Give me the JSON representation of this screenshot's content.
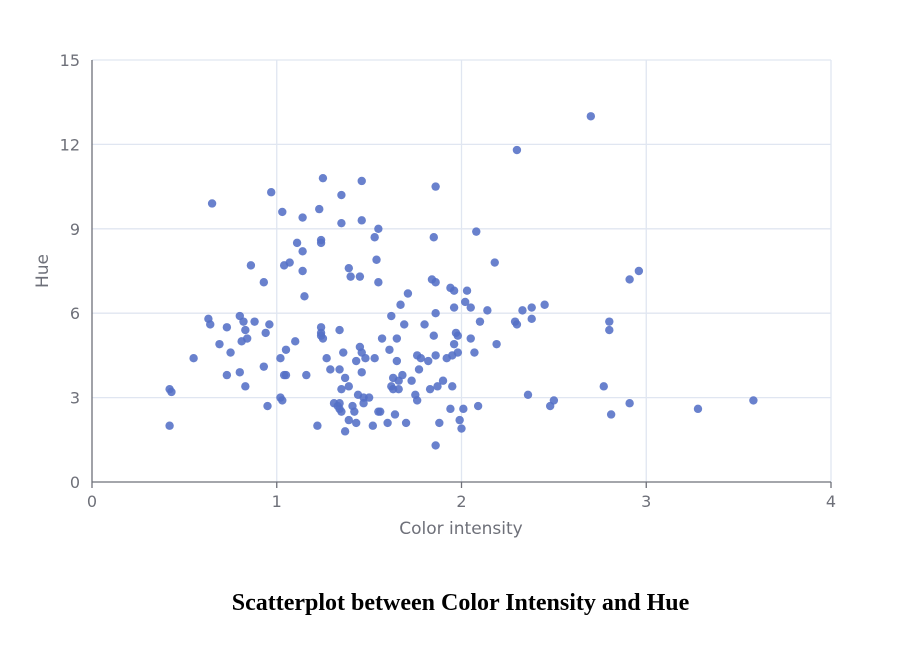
{
  "caption": "Scatterplot between Color Intensity and Hue",
  "chart_data": {
    "type": "scatter",
    "xlabel": "Color intensity",
    "ylabel": "Hue",
    "xlim": [
      0,
      4
    ],
    "ylim": [
      0,
      15
    ],
    "xticks": [
      "0",
      "1",
      "2",
      "3",
      "4"
    ],
    "yticks": [
      "0",
      "3",
      "6",
      "9",
      "12",
      "15"
    ],
    "grid": true,
    "point_color": "#5470c6",
    "points": [
      [
        0.42,
        3.3
      ],
      [
        0.43,
        3.2
      ],
      [
        0.42,
        2.0
      ],
      [
        0.55,
        4.4
      ],
      [
        0.63,
        5.8
      ],
      [
        0.64,
        5.6
      ],
      [
        0.65,
        9.9
      ],
      [
        0.69,
        4.9
      ],
      [
        0.73,
        5.5
      ],
      [
        0.73,
        3.8
      ],
      [
        0.75,
        4.6
      ],
      [
        0.8,
        3.9
      ],
      [
        0.8,
        5.9
      ],
      [
        0.81,
        5.0
      ],
      [
        0.82,
        5.7
      ],
      [
        0.83,
        5.4
      ],
      [
        0.83,
        3.4
      ],
      [
        0.84,
        5.1
      ],
      [
        0.86,
        7.7
      ],
      [
        0.88,
        5.7
      ],
      [
        0.93,
        7.1
      ],
      [
        0.93,
        4.1
      ],
      [
        0.94,
        5.3
      ],
      [
        0.95,
        2.7
      ],
      [
        0.96,
        5.6
      ],
      [
        0.97,
        10.3
      ],
      [
        1.02,
        4.4
      ],
      [
        1.02,
        3.0
      ],
      [
        1.03,
        9.6
      ],
      [
        1.03,
        2.9
      ],
      [
        1.04,
        3.8
      ],
      [
        1.04,
        7.7
      ],
      [
        1.05,
        3.8
      ],
      [
        1.05,
        4.7
      ],
      [
        1.07,
        7.8
      ],
      [
        1.1,
        5.0
      ],
      [
        1.11,
        8.5
      ],
      [
        1.14,
        9.4
      ],
      [
        1.14,
        8.2
      ],
      [
        1.14,
        7.5
      ],
      [
        1.15,
        6.6
      ],
      [
        1.16,
        3.8
      ],
      [
        1.22,
        2.0
      ],
      [
        1.23,
        9.7
      ],
      [
        1.24,
        8.6
      ],
      [
        1.24,
        8.5
      ],
      [
        1.24,
        5.5
      ],
      [
        1.24,
        5.2
      ],
      [
        1.25,
        10.8
      ],
      [
        1.25,
        5.1
      ],
      [
        1.27,
        4.4
      ],
      [
        1.29,
        4.0
      ],
      [
        1.31,
        2.8
      ],
      [
        1.33,
        2.7
      ],
      [
        1.34,
        5.4
      ],
      [
        1.34,
        4.0
      ],
      [
        1.34,
        2.8
      ],
      [
        1.34,
        2.6
      ],
      [
        1.35,
        10.2
      ],
      [
        1.35,
        9.2
      ],
      [
        1.35,
        3.3
      ],
      [
        1.35,
        2.5
      ],
      [
        1.36,
        4.6
      ],
      [
        1.37,
        3.7
      ],
      [
        1.37,
        1.8
      ],
      [
        1.39,
        7.6
      ],
      [
        1.39,
        2.2
      ],
      [
        1.39,
        3.4
      ],
      [
        1.4,
        7.3
      ],
      [
        1.41,
        2.7
      ],
      [
        1.42,
        2.5
      ],
      [
        1.43,
        2.1
      ],
      [
        1.43,
        4.3
      ],
      [
        1.44,
        3.1
      ],
      [
        1.45,
        4.8
      ],
      [
        1.45,
        7.3
      ],
      [
        1.46,
        10.7
      ],
      [
        1.46,
        9.3
      ],
      [
        1.46,
        4.6
      ],
      [
        1.46,
        3.9
      ],
      [
        1.47,
        3.0
      ],
      [
        1.47,
        2.8
      ],
      [
        1.48,
        4.4
      ],
      [
        1.5,
        3.0
      ],
      [
        1.52,
        2.0
      ],
      [
        1.53,
        4.4
      ],
      [
        1.53,
        8.7
      ],
      [
        1.54,
        7.9
      ],
      [
        1.55,
        9.0
      ],
      [
        1.55,
        7.1
      ],
      [
        1.55,
        2.5
      ],
      [
        1.56,
        2.5
      ],
      [
        1.57,
        5.1
      ],
      [
        1.6,
        2.1
      ],
      [
        1.61,
        4.7
      ],
      [
        1.62,
        5.9
      ],
      [
        1.62,
        3.4
      ],
      [
        1.63,
        3.3
      ],
      [
        1.63,
        3.7
      ],
      [
        1.64,
        2.4
      ],
      [
        1.65,
        5.1
      ],
      [
        1.65,
        4.3
      ],
      [
        1.66,
        3.3
      ],
      [
        1.66,
        3.6
      ],
      [
        1.67,
        6.3
      ],
      [
        1.68,
        3.8
      ],
      [
        1.69,
        5.6
      ],
      [
        1.7,
        2.1
      ],
      [
        1.71,
        6.7
      ],
      [
        1.73,
        3.6
      ],
      [
        1.75,
        3.1
      ],
      [
        1.76,
        2.9
      ],
      [
        1.76,
        4.5
      ],
      [
        1.77,
        4.0
      ],
      [
        1.78,
        4.4
      ],
      [
        1.8,
        5.6
      ],
      [
        1.82,
        4.3
      ],
      [
        1.83,
        3.3
      ],
      [
        1.84,
        7.2
      ],
      [
        1.85,
        8.7
      ],
      [
        1.85,
        5.2
      ],
      [
        1.86,
        10.5
      ],
      [
        1.86,
        7.1
      ],
      [
        1.86,
        6.0
      ],
      [
        1.86,
        4.5
      ],
      [
        1.87,
        3.4
      ],
      [
        1.88,
        2.1
      ],
      [
        1.9,
        3.6
      ],
      [
        1.92,
        4.4
      ],
      [
        1.94,
        6.9
      ],
      [
        1.94,
        2.6
      ],
      [
        1.95,
        4.5
      ],
      [
        1.95,
        3.4
      ],
      [
        1.96,
        6.8
      ],
      [
        1.96,
        6.2
      ],
      [
        1.96,
        4.9
      ],
      [
        1.97,
        5.3
      ],
      [
        1.98,
        5.2
      ],
      [
        1.98,
        4.6
      ],
      [
        1.99,
        2.2
      ],
      [
        2.0,
        1.9
      ],
      [
        2.01,
        2.6
      ],
      [
        2.02,
        6.4
      ],
      [
        2.03,
        6.8
      ],
      [
        2.05,
        6.2
      ],
      [
        2.05,
        5.1
      ],
      [
        2.07,
        4.6
      ],
      [
        2.08,
        8.9
      ],
      [
        2.09,
        2.7
      ],
      [
        2.1,
        5.7
      ],
      [
        2.14,
        6.1
      ],
      [
        2.18,
        7.8
      ],
      [
        2.19,
        4.9
      ],
      [
        2.29,
        5.7
      ],
      [
        2.3,
        11.8
      ],
      [
        2.3,
        5.6
      ],
      [
        2.33,
        6.1
      ],
      [
        2.36,
        3.1
      ],
      [
        2.38,
        6.2
      ],
      [
        2.38,
        5.8
      ],
      [
        2.45,
        6.3
      ],
      [
        2.48,
        2.7
      ],
      [
        2.5,
        2.9
      ],
      [
        2.7,
        13.0
      ],
      [
        2.77,
        3.4
      ],
      [
        2.8,
        5.7
      ],
      [
        2.8,
        5.4
      ],
      [
        2.81,
        2.4
      ],
      [
        2.91,
        7.2
      ],
      [
        2.91,
        2.8
      ],
      [
        2.96,
        7.5
      ],
      [
        3.28,
        2.6
      ],
      [
        3.58,
        2.9
      ],
      [
        1.86,
        1.3
      ],
      [
        1.24,
        5.3
      ]
    ]
  }
}
